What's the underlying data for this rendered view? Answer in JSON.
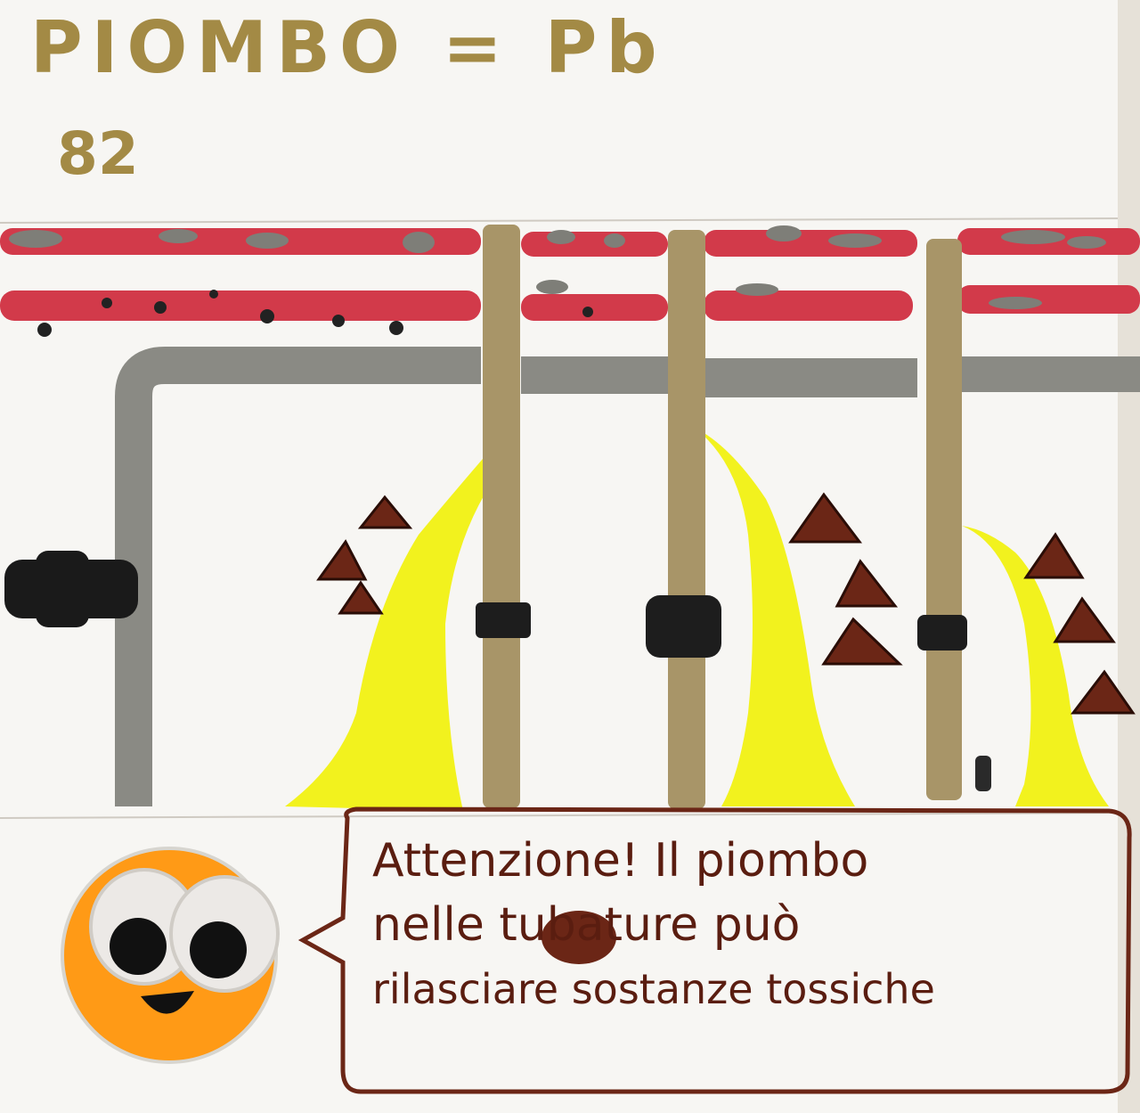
{
  "card": {
    "title": "PIOMBO = Pb",
    "atomic_number": "82",
    "speech_lines": [
      "Attenzione! Il piombo",
      "nelle tubature può",
      "rilasciare sostanze tossiche"
    ]
  },
  "colors": {
    "gold": "#a38a45",
    "red_pipe": "#d23a4a",
    "gray_pipe": "#8a8a84",
    "yellow_leak": "#f2f21e",
    "brown": "#6b2616",
    "orange_face": "#ff9a16"
  },
  "icons": [
    "pipe-icon",
    "leak-icon",
    "warning-triangle-icon",
    "googly-eye-icon",
    "smiley-face-icon"
  ]
}
